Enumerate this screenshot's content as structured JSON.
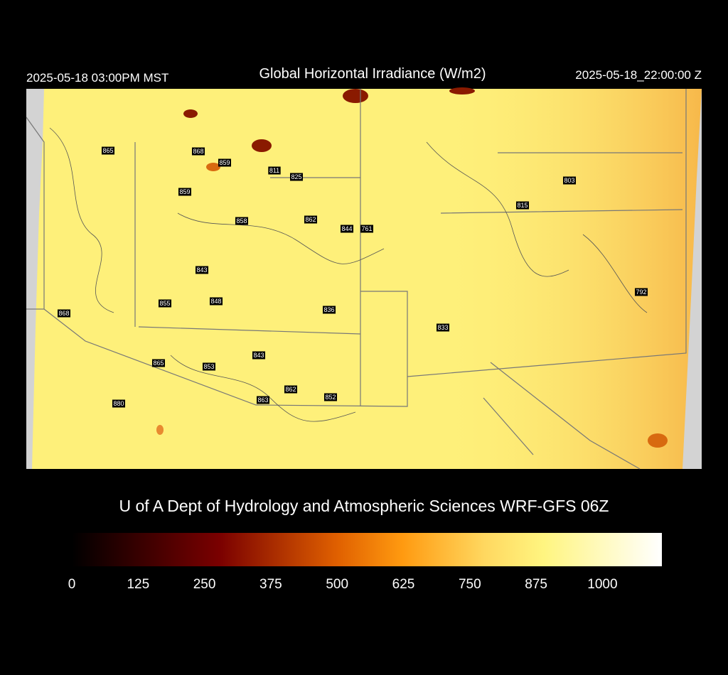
{
  "header": {
    "left": "2025-05-18 03:00PM MST",
    "title": "Global Horizontal Irradiance (W/m2)",
    "right": "2025-05-18_22:00:00 Z"
  },
  "stations": [
    "865",
    "868",
    "859",
    "811",
    "825",
    "803",
    "859",
    "815",
    "858",
    "862",
    "844",
    "761",
    "843",
    "792",
    "855",
    "848",
    "868",
    "836",
    "833",
    "843",
    "865",
    "853",
    "862",
    "852",
    "863",
    "880"
  ],
  "credit": "U of A Dept of Hydrology and Atmospheric Sciences WRF-GFS 06Z",
  "colorbar": {
    "range": [
      0,
      1112
    ],
    "ticks": [
      0,
      125,
      250,
      375,
      500,
      625,
      750,
      875,
      1000
    ]
  }
}
